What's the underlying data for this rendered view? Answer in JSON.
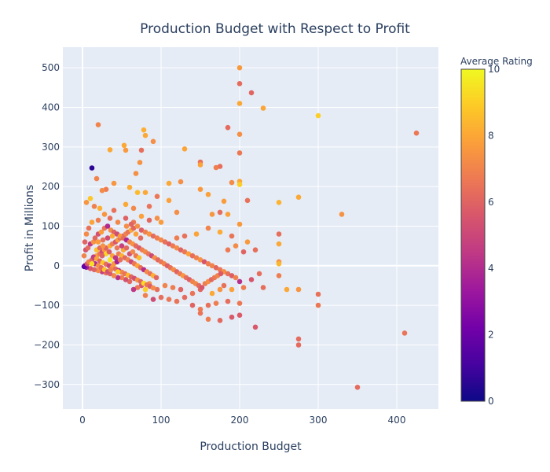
{
  "chart_data": {
    "type": "scatter",
    "title": "Production Budget with Respect to Profit",
    "xlabel": "Production Budget",
    "ylabel": "Profit in Millions",
    "xlim": [
      -25,
      453
    ],
    "ylim": [
      -362,
      552
    ],
    "x_ticks": [
      0,
      100,
      200,
      300,
      400
    ],
    "y_ticks": [
      -300,
      -200,
      -100,
      0,
      100,
      200,
      300,
      400,
      500
    ],
    "grid": true,
    "colorbar": {
      "title": "Average Rating",
      "range": [
        0,
        10
      ],
      "ticks": [
        0,
        2,
        4,
        6,
        8,
        10
      ]
    },
    "points": [
      [
        200,
        500,
        7.6
      ],
      [
        200,
        460,
        6.2
      ],
      [
        215,
        437,
        6.0
      ],
      [
        200,
        410,
        8.0
      ],
      [
        230,
        398,
        7.9
      ],
      [
        300,
        379,
        9.0
      ],
      [
        425,
        335,
        6.6
      ],
      [
        185,
        349,
        6.2
      ],
      [
        200,
        332,
        7.3
      ],
      [
        200,
        285,
        6.6
      ],
      [
        20,
        356,
        7.0
      ],
      [
        78,
        343,
        8.2
      ],
      [
        80,
        329,
        8.0
      ],
      [
        90,
        314,
        7.3
      ],
      [
        53,
        304,
        8.0
      ],
      [
        35,
        293,
        8.0
      ],
      [
        55,
        292,
        7.6
      ],
      [
        75,
        292,
        6.3
      ],
      [
        130,
        295,
        7.9
      ],
      [
        150,
        262,
        6.4
      ],
      [
        73,
        261,
        7.4
      ],
      [
        150,
        255,
        7.9
      ],
      [
        175,
        251,
        6.3
      ],
      [
        170,
        248,
        6.8
      ],
      [
        12,
        247,
        0.6
      ],
      [
        68,
        233,
        7.3
      ],
      [
        18,
        220,
        7.0
      ],
      [
        125,
        212,
        7.3
      ],
      [
        110,
        208,
        8.0
      ],
      [
        200,
        213,
        8.0
      ],
      [
        190,
        210,
        7.2
      ],
      [
        40,
        208,
        7.5
      ],
      [
        200,
        205,
        9.0
      ],
      [
        150,
        193,
        7.6
      ],
      [
        275,
        173,
        8.0
      ],
      [
        330,
        130,
        7.4
      ],
      [
        250,
        160,
        8.3
      ],
      [
        180,
        163,
        7.7
      ],
      [
        210,
        165,
        6.4
      ],
      [
        160,
        180,
        7.8
      ],
      [
        110,
        165,
        7.8
      ],
      [
        95,
        175,
        6.6
      ],
      [
        70,
        185,
        8.5
      ],
      [
        80,
        185,
        8.0
      ],
      [
        30,
        193,
        6.8
      ],
      [
        10,
        170,
        8.8
      ],
      [
        60,
        198,
        8.1
      ],
      [
        25,
        190,
        7.2
      ],
      [
        5,
        160,
        7.5
      ],
      [
        15,
        150,
        6.9
      ],
      [
        22,
        145,
        8.2
      ],
      [
        40,
        140,
        6.4
      ],
      [
        55,
        155,
        8.0
      ],
      [
        65,
        145,
        7.1
      ],
      [
        85,
        150,
        6.5
      ],
      [
        120,
        135,
        7.3
      ],
      [
        165,
        130,
        7.5
      ],
      [
        175,
        135,
        6.3
      ],
      [
        185,
        130,
        7.8
      ],
      [
        200,
        105,
        7.6
      ],
      [
        250,
        80,
        6.3
      ],
      [
        220,
        40,
        6.3
      ],
      [
        250,
        55,
        8.0
      ],
      [
        250,
        10,
        7.3
      ],
      [
        250,
        5,
        8.4
      ],
      [
        250,
        -25,
        6.8
      ],
      [
        260,
        -60,
        8.0
      ],
      [
        275,
        -60,
        7.5
      ],
      [
        300,
        -72,
        6.4
      ],
      [
        300,
        -100,
        6.6
      ],
      [
        275,
        -185,
        6.2
      ],
      [
        275,
        -200,
        6.2
      ],
      [
        220,
        -155,
        5.6
      ],
      [
        350,
        -307,
        6.2
      ],
      [
        410,
        -170,
        6.5
      ],
      [
        200,
        -125,
        5.7
      ],
      [
        190,
        -130,
        5.6
      ],
      [
        175,
        -138,
        6.1
      ],
      [
        160,
        -135,
        6.8
      ],
      [
        150,
        -120,
        6.5
      ],
      [
        200,
        -95,
        6.6
      ],
      [
        185,
        -90,
        6.3
      ],
      [
        170,
        -95,
        6.8
      ],
      [
        160,
        -100,
        6.4
      ],
      [
        150,
        -110,
        6.7
      ],
      [
        140,
        -100,
        6.0
      ],
      [
        130,
        -80,
        6.2
      ],
      [
        120,
        -90,
        6.5
      ],
      [
        110,
        -85,
        6.6
      ],
      [
        100,
        -80,
        6.3
      ],
      [
        90,
        -85,
        5.2
      ],
      [
        80,
        -75,
        6.9
      ],
      [
        200,
        -40,
        4.2
      ],
      [
        215,
        -35,
        5.5
      ],
      [
        225,
        -20,
        6.3
      ],
      [
        230,
        -55,
        6.3
      ],
      [
        205,
        -55,
        6.8
      ],
      [
        190,
        -60,
        7.8
      ],
      [
        175,
        -60,
        7.5
      ],
      [
        165,
        -70,
        8.0
      ],
      [
        150,
        -60,
        6.1
      ],
      [
        140,
        -70,
        6.5
      ],
      [
        125,
        -60,
        6.0
      ],
      [
        115,
        -55,
        6.8
      ],
      [
        105,
        -50,
        7.0
      ],
      [
        95,
        -60,
        6.3
      ],
      [
        85,
        -45,
        7.3
      ],
      [
        75,
        -50,
        5.5
      ],
      [
        70,
        -55,
        6.6
      ],
      [
        65,
        -60,
        4.5
      ],
      [
        60,
        -40,
        6.1
      ],
      [
        55,
        -35,
        5.3
      ],
      [
        50,
        -30,
        6.8
      ],
      [
        45,
        -30,
        4.2
      ],
      [
        40,
        -25,
        7.1
      ],
      [
        35,
        -20,
        5.8
      ],
      [
        30,
        -18,
        6.5
      ],
      [
        25,
        -15,
        4.8
      ],
      [
        20,
        -12,
        7.2
      ],
      [
        15,
        -10,
        6.0
      ],
      [
        10,
        -7,
        5.6
      ],
      [
        5,
        -4,
        3.5
      ],
      [
        2,
        -2,
        1.2
      ],
      [
        3,
        0,
        2.0
      ],
      [
        6,
        5,
        5.5
      ],
      [
        8,
        10,
        7.0
      ],
      [
        12,
        15,
        6.2
      ],
      [
        15,
        20,
        4.3
      ],
      [
        18,
        25,
        7.8
      ],
      [
        22,
        30,
        6.6
      ],
      [
        25,
        35,
        5.2
      ],
      [
        28,
        40,
        7.4
      ],
      [
        30,
        45,
        6.0
      ],
      [
        35,
        50,
        8.2
      ],
      [
        38,
        55,
        6.8
      ],
      [
        42,
        60,
        5.6
      ],
      [
        45,
        65,
        7.6
      ],
      [
        48,
        70,
        6.3
      ],
      [
        52,
        75,
        4.9
      ],
      [
        55,
        80,
        7.0
      ],
      [
        58,
        85,
        6.5
      ],
      [
        62,
        90,
        8.0
      ],
      [
        65,
        95,
        6.1
      ],
      [
        70,
        100,
        7.3
      ],
      [
        75,
        90,
        5.8
      ],
      [
        80,
        85,
        6.9
      ],
      [
        85,
        80,
        7.5
      ],
      [
        90,
        75,
        6.2
      ],
      [
        95,
        70,
        6.8
      ],
      [
        100,
        65,
        7.1
      ],
      [
        105,
        60,
        6.4
      ],
      [
        110,
        55,
        5.9
      ],
      [
        115,
        50,
        6.7
      ],
      [
        120,
        45,
        7.2
      ],
      [
        125,
        40,
        6.0
      ],
      [
        130,
        35,
        6.6
      ],
      [
        135,
        30,
        7.8
      ],
      [
        140,
        25,
        6.3
      ],
      [
        145,
        20,
        6.9
      ],
      [
        150,
        15,
        7.4
      ],
      [
        155,
        10,
        5.5
      ],
      [
        160,
        5,
        6.8
      ],
      [
        165,
        0,
        7.0
      ],
      [
        170,
        -5,
        6.1
      ],
      [
        175,
        -10,
        6.6
      ],
      [
        180,
        -15,
        7.3
      ],
      [
        185,
        -20,
        6.4
      ],
      [
        190,
        -25,
        5.8
      ],
      [
        195,
        -30,
        6.9
      ],
      [
        185,
        40,
        6.7
      ],
      [
        195,
        50,
        7.2
      ],
      [
        205,
        35,
        6.0
      ],
      [
        210,
        60,
        7.6
      ],
      [
        190,
        75,
        6.5
      ],
      [
        175,
        85,
        8.1
      ],
      [
        160,
        95,
        7.0
      ],
      [
        145,
        80,
        7.9
      ],
      [
        130,
        75,
        6.4
      ],
      [
        120,
        70,
        6.8
      ],
      [
        100,
        110,
        7.7
      ],
      [
        95,
        120,
        7.3
      ],
      [
        85,
        115,
        6.1
      ],
      [
        75,
        125,
        7.8
      ],
      [
        65,
        110,
        6.6
      ],
      [
        55,
        120,
        5.9
      ],
      [
        45,
        110,
        7.1
      ],
      [
        35,
        120,
        6.3
      ],
      [
        28,
        130,
        7.5
      ],
      [
        20,
        115,
        6.8
      ],
      [
        12,
        110,
        7.9
      ],
      [
        8,
        95,
        6.4
      ],
      [
        5,
        80,
        7.2
      ],
      [
        3,
        60,
        6.0
      ],
      [
        4,
        40,
        5.5
      ],
      [
        2,
        25,
        7.0
      ],
      [
        7,
        45,
        6.2
      ],
      [
        10,
        55,
        4.6
      ],
      [
        14,
        60,
        7.4
      ],
      [
        16,
        70,
        6.1
      ],
      [
        20,
        80,
        5.3
      ],
      [
        24,
        85,
        7.7
      ],
      [
        28,
        95,
        6.5
      ],
      [
        32,
        100,
        4.0
      ],
      [
        36,
        90,
        7.2
      ],
      [
        40,
        85,
        6.0
      ],
      [
        44,
        80,
        5.2
      ],
      [
        48,
        75,
        7.6
      ],
      [
        52,
        70,
        6.3
      ],
      [
        56,
        65,
        3.8
      ],
      [
        60,
        60,
        6.9
      ],
      [
        64,
        55,
        7.4
      ],
      [
        68,
        50,
        6.2
      ],
      [
        72,
        45,
        5.7
      ],
      [
        76,
        40,
        6.8
      ],
      [
        80,
        35,
        7.1
      ],
      [
        84,
        30,
        6.5
      ],
      [
        88,
        25,
        5.0
      ],
      [
        92,
        20,
        7.3
      ],
      [
        96,
        15,
        6.1
      ],
      [
        100,
        10,
        6.6
      ],
      [
        104,
        5,
        7.0
      ],
      [
        108,
        0,
        5.9
      ],
      [
        112,
        -5,
        6.4
      ],
      [
        116,
        -10,
        7.2
      ],
      [
        120,
        -15,
        6.0
      ],
      [
        124,
        -20,
        6.7
      ],
      [
        128,
        -25,
        7.5
      ],
      [
        132,
        -30,
        6.3
      ],
      [
        136,
        -35,
        5.8
      ],
      [
        140,
        -40,
        6.9
      ],
      [
        144,
        -45,
        7.1
      ],
      [
        148,
        -50,
        6.2
      ],
      [
        152,
        -55,
        5.5
      ],
      [
        156,
        -45,
        6.8
      ],
      [
        160,
        -40,
        7.3
      ],
      [
        164,
        -35,
        6.1
      ],
      [
        168,
        -30,
        6.6
      ],
      [
        172,
        -25,
        7.0
      ],
      [
        176,
        -20,
        5.7
      ],
      [
        180,
        -50,
        6.4
      ],
      [
        14,
        22,
        4.7
      ],
      [
        18,
        18,
        7.9
      ],
      [
        22,
        12,
        6.0
      ],
      [
        26,
        8,
        8.8
      ],
      [
        30,
        4,
        6.3
      ],
      [
        34,
        0,
        5.0
      ],
      [
        38,
        -4,
        7.6
      ],
      [
        42,
        -8,
        6.2
      ],
      [
        46,
        -12,
        4.3
      ],
      [
        50,
        -16,
        7.0
      ],
      [
        54,
        -20,
        6.5
      ],
      [
        58,
        -24,
        8.4
      ],
      [
        62,
        -28,
        6.0
      ],
      [
        66,
        -32,
        5.3
      ],
      [
        70,
        -36,
        7.4
      ],
      [
        74,
        -40,
        6.1
      ],
      [
        78,
        -44,
        9.3
      ],
      [
        82,
        -48,
        6.6
      ],
      [
        86,
        -52,
        5.8
      ],
      [
        90,
        -56,
        7.2
      ],
      [
        18,
        40,
        8.6
      ],
      [
        22,
        45,
        6.1
      ],
      [
        26,
        50,
        7.4
      ],
      [
        30,
        30,
        9.1
      ],
      [
        34,
        35,
        5.6
      ],
      [
        38,
        25,
        7.8
      ],
      [
        42,
        20,
        4.4
      ],
      [
        46,
        30,
        6.8
      ],
      [
        50,
        25,
        8.3
      ],
      [
        54,
        20,
        6.2
      ],
      [
        58,
        15,
        7.0
      ],
      [
        62,
        10,
        5.1
      ],
      [
        66,
        5,
        6.6
      ],
      [
        70,
        0,
        7.9
      ],
      [
        74,
        -5,
        6.3
      ],
      [
        78,
        -10,
        4.1
      ],
      [
        82,
        -15,
        7.2
      ],
      [
        86,
        -20,
        6.5
      ],
      [
        90,
        -25,
        8.2
      ],
      [
        94,
        -30,
        6.0
      ],
      [
        16,
        5,
        4.0
      ],
      [
        20,
        0,
        7.3
      ],
      [
        24,
        -5,
        6.2
      ],
      [
        28,
        -10,
        8.7
      ],
      [
        32,
        -15,
        5.3
      ],
      [
        36,
        -10,
        6.9
      ],
      [
        40,
        5,
        7.6
      ],
      [
        44,
        10,
        3.6
      ],
      [
        48,
        15,
        6.4
      ],
      [
        52,
        40,
        8.0
      ],
      [
        56,
        45,
        6.1
      ],
      [
        60,
        30,
        5.4
      ],
      [
        64,
        35,
        7.1
      ],
      [
        68,
        25,
        6.7
      ],
      [
        72,
        20,
        8.5
      ],
      [
        20,
        60,
        7.7
      ],
      [
        26,
        65,
        6.4
      ],
      [
        32,
        70,
        5.2
      ],
      [
        38,
        75,
        8.1
      ],
      [
        44,
        45,
        6.6
      ],
      [
        50,
        50,
        4.8
      ],
      [
        56,
        100,
        7.3
      ],
      [
        62,
        105,
        6.0
      ],
      [
        68,
        80,
        7.8
      ],
      [
        74,
        70,
        6.2
      ],
      [
        35,
        15,
        9.6
      ],
      [
        45,
        -15,
        8.9
      ],
      [
        12,
        5,
        9.4
      ],
      [
        25,
        25,
        5.9
      ],
      [
        80,
        -60,
        9.0
      ]
    ]
  }
}
